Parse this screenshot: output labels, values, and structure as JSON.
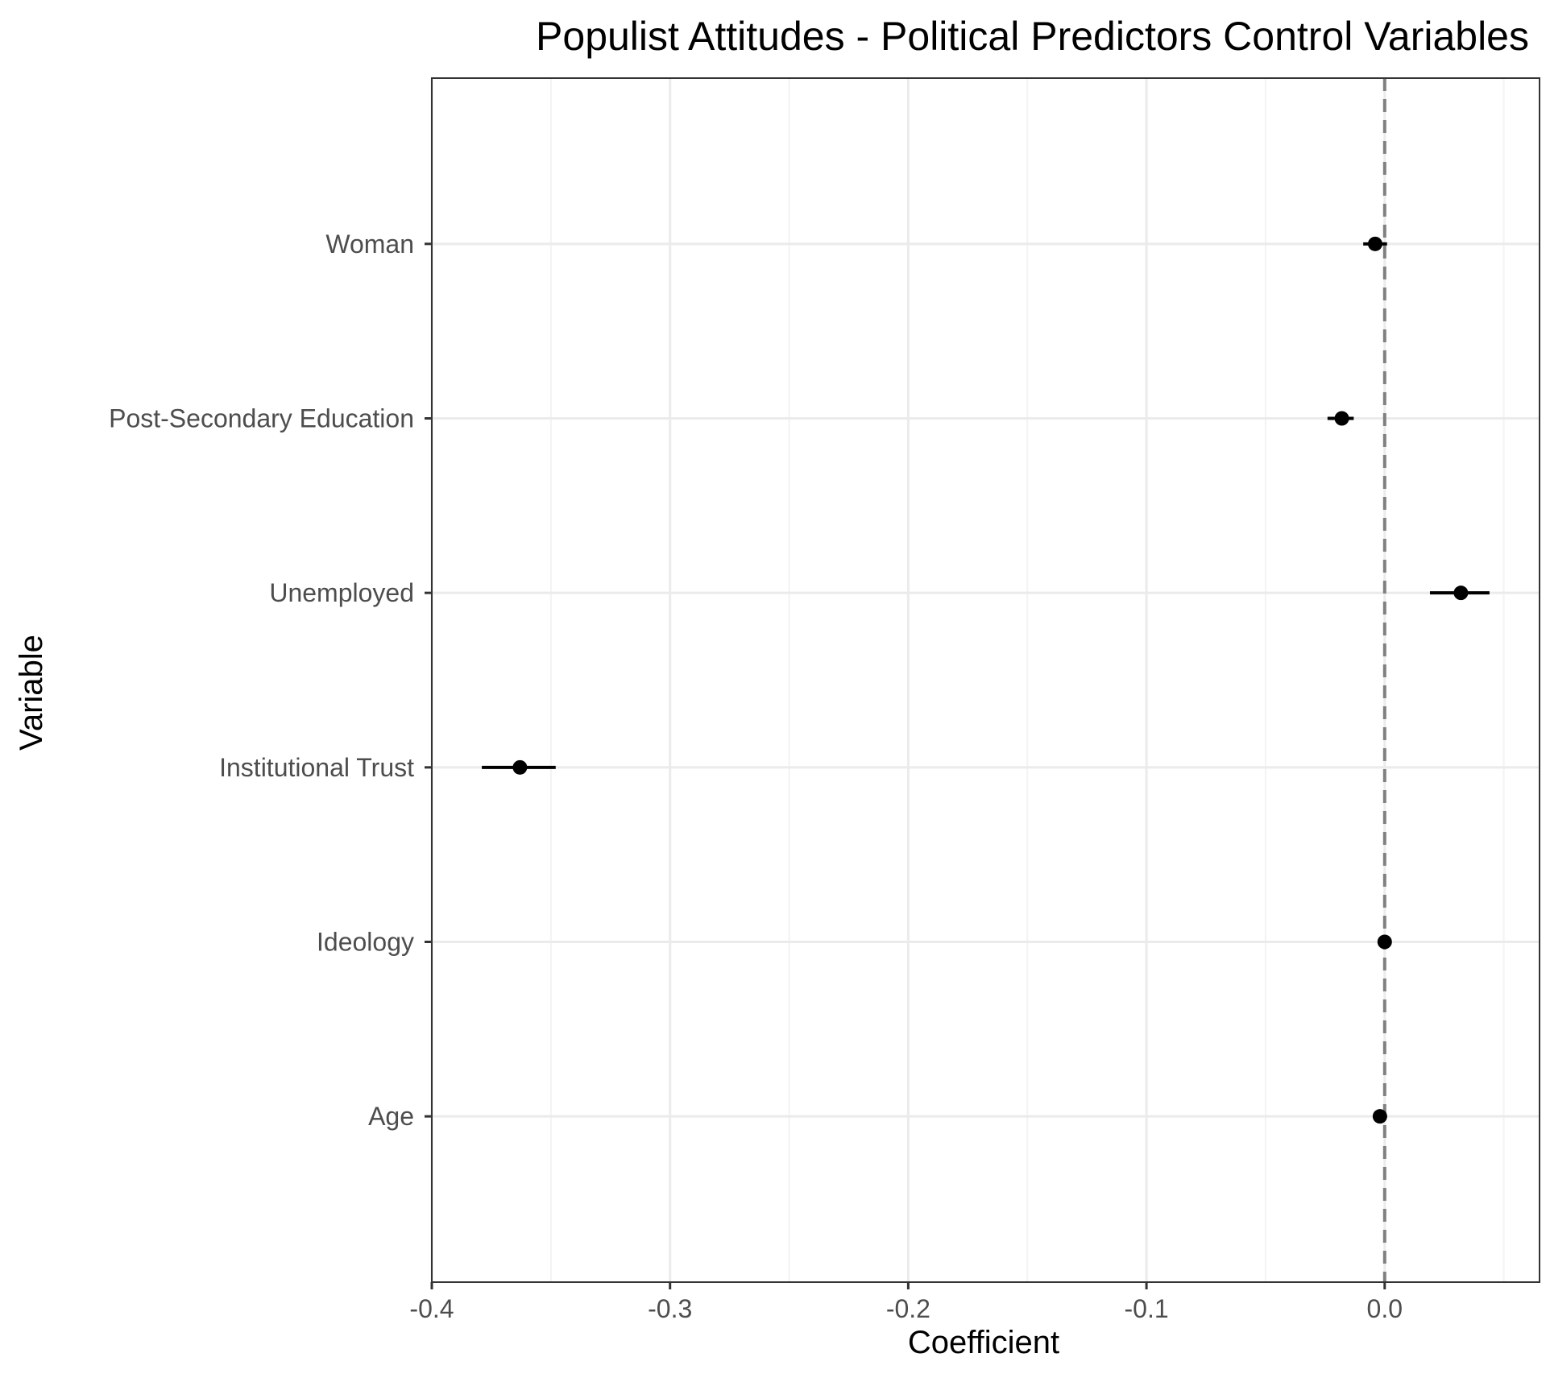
{
  "chart_data": {
    "type": "scatter",
    "title": "Populist Attitudes - Political Predictors Control Variables",
    "xlabel": "Coefficient",
    "ylabel": "Variable",
    "xlim": [
      -0.4,
      0.065
    ],
    "x_ticks": [
      "-0.4",
      "-0.3",
      "-0.2",
      "-0.1",
      "0.0"
    ],
    "x_tick_values": [
      -0.4,
      -0.3,
      -0.2,
      -0.1,
      0.0
    ],
    "reference_line": {
      "x": 0.0,
      "style": "dashed",
      "color": "#808080"
    },
    "grid": true,
    "categories": [
      "Woman",
      "Post-Secondary Education",
      "Unemployed",
      "Institutional Trust",
      "Ideology",
      "Age"
    ],
    "points": [
      {
        "label": "Woman",
        "estimate": -0.004,
        "lower": -0.009,
        "upper": 0.001
      },
      {
        "label": "Post-Secondary Education",
        "estimate": -0.018,
        "lower": -0.024,
        "upper": -0.013
      },
      {
        "label": "Unemployed",
        "estimate": 0.032,
        "lower": 0.019,
        "upper": 0.044
      },
      {
        "label": "Institutional Trust",
        "estimate": -0.363,
        "lower": -0.379,
        "upper": -0.348
      },
      {
        "label": "Ideology",
        "estimate": 0.0,
        "lower": 0.0,
        "upper": 0.0
      },
      {
        "label": "Age",
        "estimate": -0.002,
        "lower": -0.002,
        "upper": -0.002
      }
    ],
    "colors": {
      "point": "#000000",
      "grid_major": "#ebebeb",
      "grid_minor": "#f3f3f3",
      "border": "#333333",
      "reference": "#808080"
    }
  }
}
